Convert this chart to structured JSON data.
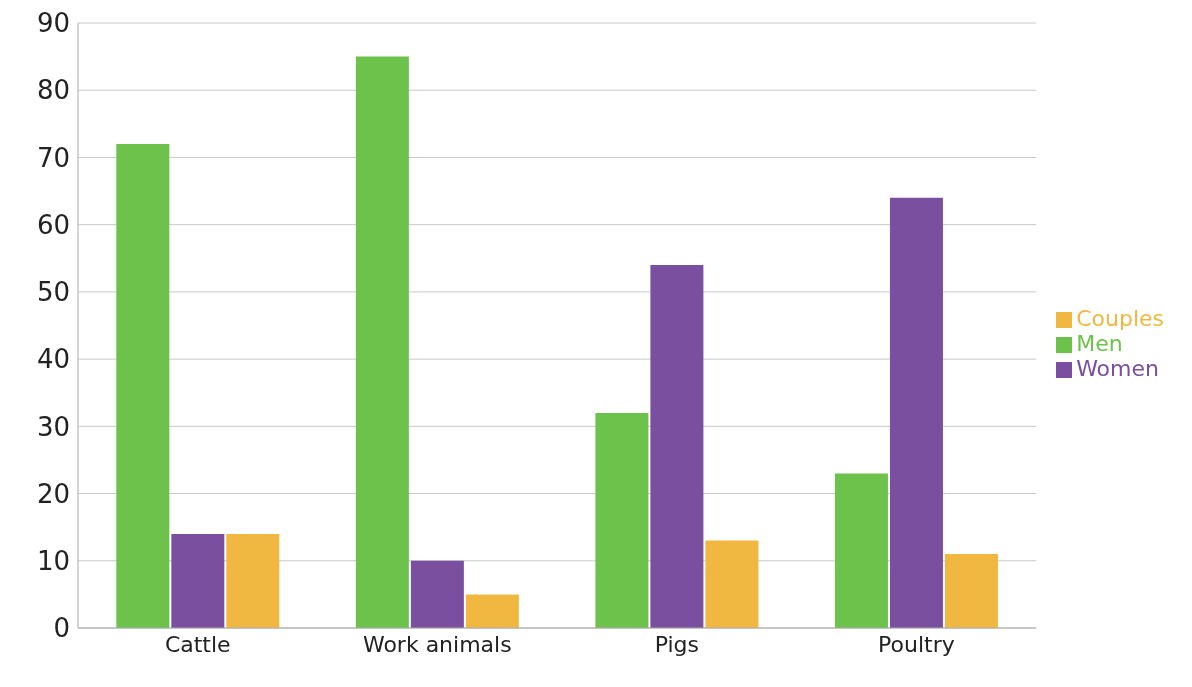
{
  "chart_data": {
    "type": "bar",
    "categories": [
      "Cattle",
      "Work animals",
      "Pigs",
      "Poultry"
    ],
    "series": [
      {
        "name": "Men",
        "color": "#6cc24a",
        "values": [
          72,
          85,
          32,
          23
        ]
      },
      {
        "name": "Women",
        "color": "#7a4fa0",
        "values": [
          14,
          10,
          54,
          64
        ]
      },
      {
        "name": "Couples",
        "color": "#f0b840",
        "values": [
          14,
          5,
          13,
          11
        ]
      }
    ],
    "ylim": [
      0,
      90
    ],
    "yticks": [
      0,
      10,
      20,
      30,
      40,
      50,
      60,
      70,
      80,
      90
    ],
    "grid": "y",
    "legend": "right"
  }
}
